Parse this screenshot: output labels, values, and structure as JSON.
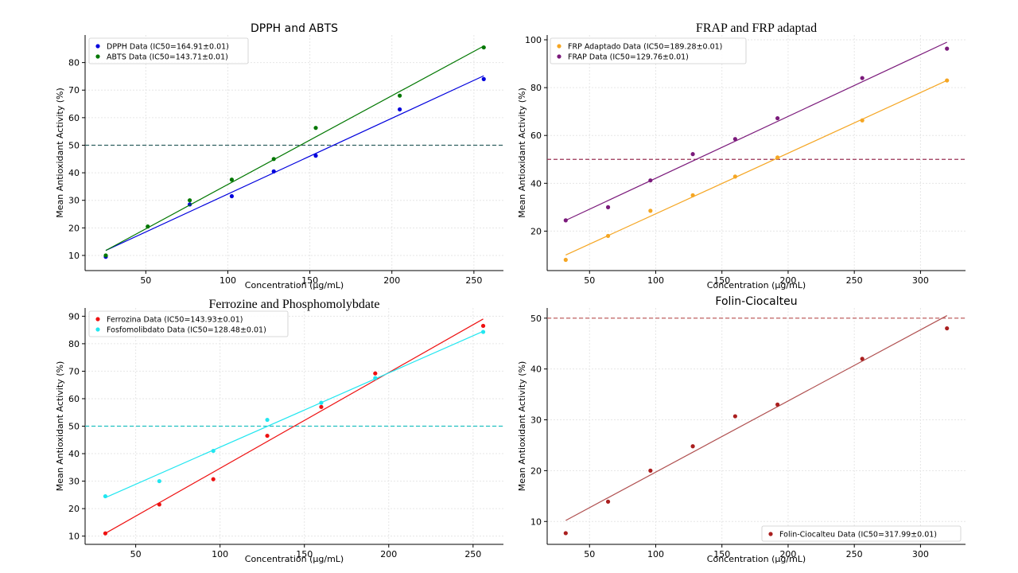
{
  "chart_data": [
    {
      "type": "scatter",
      "title": "DPPH and ABTS",
      "xlabel": "Concentration (μg/mL)",
      "ylabel": "Mean Antioxidant Activity (%)",
      "xlim": [
        13,
        268
      ],
      "ylim": [
        4.5,
        90
      ],
      "xticks": [
        50,
        100,
        150,
        200,
        250
      ],
      "yticks": [
        10,
        20,
        30,
        40,
        50,
        60,
        70,
        80
      ],
      "hline": 50,
      "hline_color": "#2f5f5f",
      "legend_position": "top-left",
      "grid": true,
      "series": [
        {
          "name": "DPPH Data (IC50=164.91±0.01)",
          "color": "#0000dd",
          "x": [
            25.6,
            76.8,
            102.4,
            128,
            153.6,
            204.8,
            256
          ],
          "y": [
            9.5,
            28.5,
            31.5,
            40.5,
            46.2,
            63,
            74
          ],
          "fit": [
            [
              25.6,
              11.8
            ],
            [
              256,
              75.2
            ]
          ]
        },
        {
          "name": "ABTS Data (IC50=143.71±0.01)",
          "color": "#007700",
          "x": [
            25.6,
            51.2,
            76.8,
            102.4,
            128,
            153.6,
            204.8,
            256
          ],
          "y": [
            10,
            20.5,
            30,
            37.5,
            45,
            56.3,
            68,
            85.5
          ],
          "fit": [
            [
              25.6,
              11.8
            ],
            [
              256,
              86
            ]
          ]
        }
      ]
    },
    {
      "type": "scatter",
      "title": "FRAP and FRP adaptad",
      "xlabel": "Concentration (μg/mL)",
      "ylabel": "Mean Antioxidant Activity (%)",
      "xlim": [
        18,
        334
      ],
      "ylim": [
        3.5,
        102
      ],
      "xticks": [
        50,
        100,
        150,
        200,
        250,
        300
      ],
      "yticks": [
        20,
        40,
        60,
        80,
        100
      ],
      "hline": 50,
      "hline_color": "#993355",
      "legend_position": "top-left",
      "grid": true,
      "series": [
        {
          "name": "FRP Adaptado Data (IC50=189.28±0.01)",
          "color": "#f5a623",
          "x": [
            32,
            64,
            96,
            128,
            160,
            192,
            256,
            320
          ],
          "y": [
            8,
            18,
            28.5,
            35,
            42.8,
            50.8,
            66.3,
            83
          ],
          "fit": [
            [
              32,
              10
            ],
            [
              320,
              83
            ]
          ]
        },
        {
          "name": "FRAP Data (IC50=129.76±0.01)",
          "color": "#7b1a7b",
          "x": [
            32,
            64,
            96,
            128,
            160,
            192,
            256,
            320
          ],
          "y": [
            24.5,
            30,
            41.2,
            52.2,
            58.5,
            67.2,
            84,
            96.3
          ],
          "fit": [
            [
              32,
              24.5
            ],
            [
              320,
              99
            ]
          ]
        }
      ]
    },
    {
      "type": "scatter",
      "title": "Ferrozine and Phosphomolybdate",
      "xlabel": "Concentration (μg/mL)",
      "ylabel": "Mean Antioxidant Activity (%)",
      "xlim": [
        20,
        268
      ],
      "ylim": [
        7,
        93
      ],
      "xticks": [
        50,
        100,
        150,
        200,
        250
      ],
      "yticks": [
        10,
        20,
        30,
        40,
        50,
        60,
        70,
        80,
        90
      ],
      "hline": 50,
      "hline_color": "#20c0c0",
      "legend_position": "top-left",
      "grid": true,
      "series": [
        {
          "name": "Ferrozina Data (IC50=143.93±0.01)",
          "color": "#ee1111",
          "x": [
            32,
            64,
            96,
            128,
            160,
            192,
            256
          ],
          "y": [
            11,
            21.5,
            30.7,
            46.5,
            57,
            69.2,
            86.5
          ],
          "fit": [
            [
              32,
              11
            ],
            [
              256,
              89
            ]
          ]
        },
        {
          "name": "Fosfomolibdato Data (IC50=128.48±0.01)",
          "color": "#22e6f0",
          "x": [
            32,
            64,
            96,
            128,
            160,
            192,
            256
          ],
          "y": [
            24.5,
            30,
            41,
            52.3,
            58.5,
            67.5,
            84.3
          ],
          "fit": [
            [
              32,
              24
            ],
            [
              256,
              84.5
            ]
          ]
        }
      ]
    },
    {
      "type": "scatter",
      "title": "Folin-Ciocalteu",
      "xlabel": "Concentration (μg/mL)",
      "ylabel": "Mean Antioxidant Activity (%)",
      "xlim": [
        18,
        334
      ],
      "ylim": [
        5.5,
        52
      ],
      "xticks": [
        50,
        100,
        150,
        200,
        250,
        300
      ],
      "yticks": [
        10,
        20,
        30,
        40,
        50
      ],
      "hline": 50,
      "hline_color": "#c06060",
      "legend_position": "bottom-right",
      "grid": true,
      "series": [
        {
          "name": "Folin-Ciocalteu Data (IC50=317.99±0.01)",
          "color": "#aa1f1f",
          "line_color": "#b05050",
          "x": [
            32,
            64,
            96,
            128,
            160,
            192,
            256,
            320
          ],
          "y": [
            7.7,
            13.9,
            20,
            24.8,
            30.7,
            33,
            42,
            48
          ],
          "fit": [
            [
              32,
              10.2
            ],
            [
              320,
              50.5
            ]
          ]
        }
      ]
    }
  ]
}
